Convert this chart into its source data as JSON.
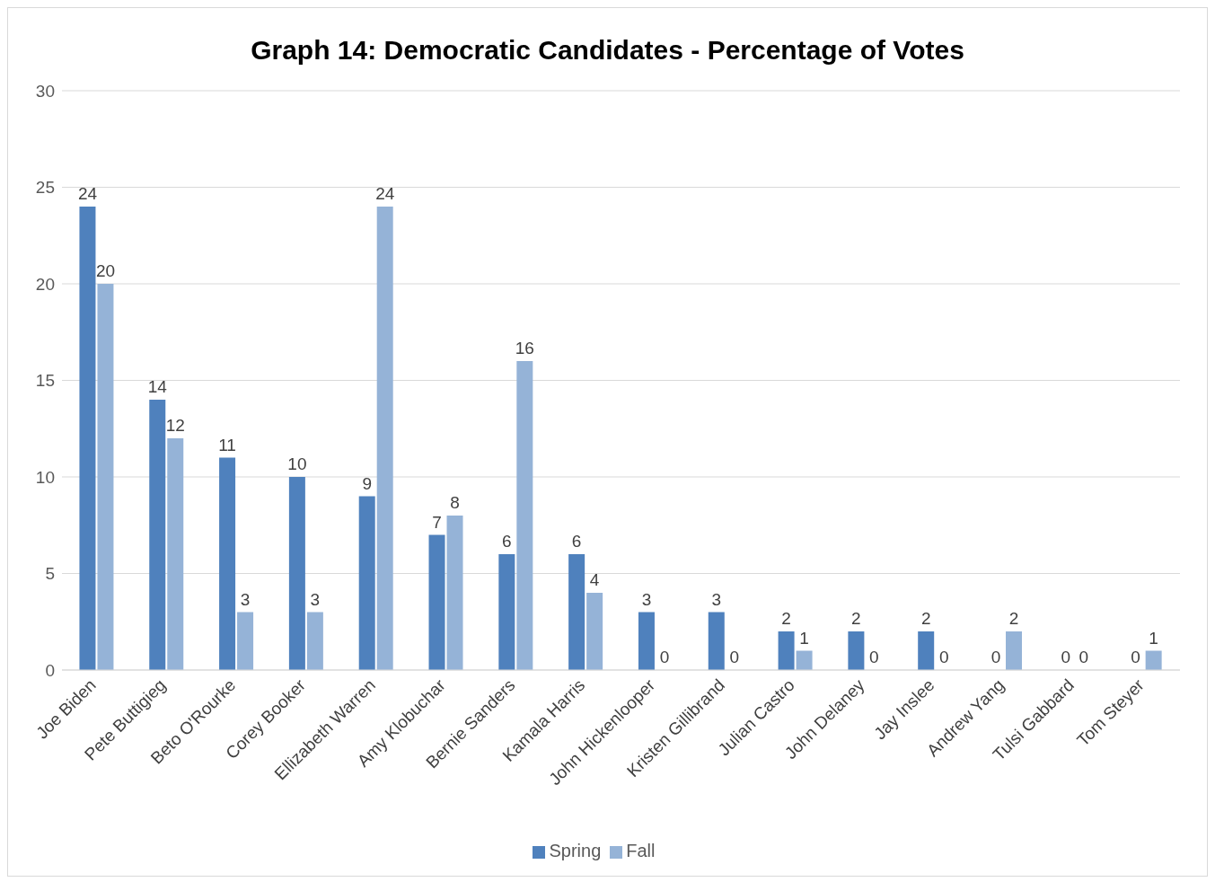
{
  "chart_data": {
    "type": "bar",
    "title": "Graph 14: Democratic Candidates - Percentage of Votes",
    "categories": [
      "Joe Biden",
      "Pete Buttigieg",
      "Beto O'Rourke",
      "Corey Booker",
      "Ellizabeth Warren",
      "Amy Klobuchar",
      "Bernie Sanders",
      "Kamala Harris",
      "John Hickenlooper",
      "Kristen Gillibrand",
      "Julian Castro",
      "John Delaney",
      "Jay Inslee",
      "Andrew Yang",
      "Tulsi Gabbard",
      "Tom Steyer"
    ],
    "series": [
      {
        "name": "Spring",
        "color": "#4f81bd",
        "values": [
          24,
          14,
          11,
          10,
          9,
          7,
          6,
          6,
          3,
          3,
          2,
          2,
          2,
          0,
          0,
          0
        ]
      },
      {
        "name": "Fall",
        "color": "#95b3d7",
        "values": [
          20,
          12,
          3,
          3,
          24,
          8,
          16,
          4,
          0,
          0,
          1,
          0,
          0,
          2,
          0,
          1
        ]
      }
    ],
    "ylim": [
      0,
      30
    ],
    "yticks": [
      0,
      5,
      10,
      15,
      20,
      25,
      30
    ],
    "grid": "y",
    "legend": "bottom",
    "data_labels": true
  }
}
